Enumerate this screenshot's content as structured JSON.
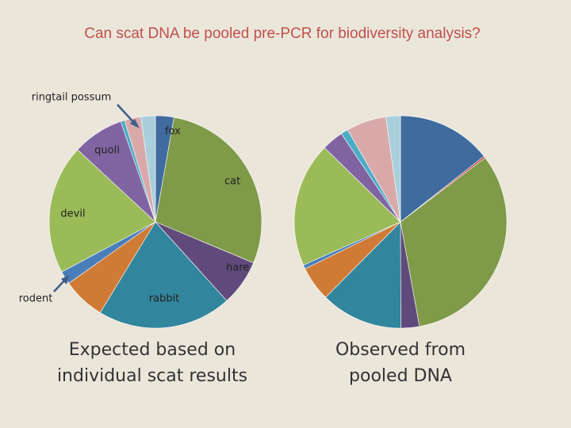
{
  "title": "Can scat DNA be pooled pre-PCR for biodiversity analysis?",
  "chart_data": [
    {
      "type": "pie",
      "caption": "Expected based on\nindividual scat results",
      "categories": [
        "fox",
        "cat",
        "hare",
        "rabbit",
        null,
        "rodent",
        "devil",
        "quoll",
        null,
        "ringtail possum",
        null
      ],
      "values": [
        2.8,
        28.5,
        7,
        20.4,
        6.5,
        2,
        19.7,
        7.8,
        0.6,
        2.5,
        2.2
      ],
      "colors": [
        "#3f6b9e",
        "#7f9a48",
        "#604a7b",
        "#31859c",
        "#d07b35",
        "#4a7ebb",
        "#9bbb59",
        "#8064a2",
        "#4bacc6",
        "#d9a9a9",
        "#a9cfdc"
      ]
    },
    {
      "type": "pie",
      "caption": "Observed from\npooled DNA",
      "categories": [
        null,
        null,
        null,
        null,
        null,
        null,
        null,
        null,
        null,
        null,
        null,
        null
      ],
      "values": [
        14.4,
        0.3,
        32.5,
        2.8,
        12.5,
        5.3,
        0.6,
        19,
        3.3,
        1.1,
        6.1,
        2.2
      ],
      "colors": [
        "#3f6b9e",
        "#c0504d",
        "#7f9a48",
        "#604a7b",
        "#31859c",
        "#d07b35",
        "#4a7ebb",
        "#9bbb59",
        "#8064a2",
        "#4bacc6",
        "#d9a9a9",
        "#a9cfdc"
      ]
    }
  ]
}
